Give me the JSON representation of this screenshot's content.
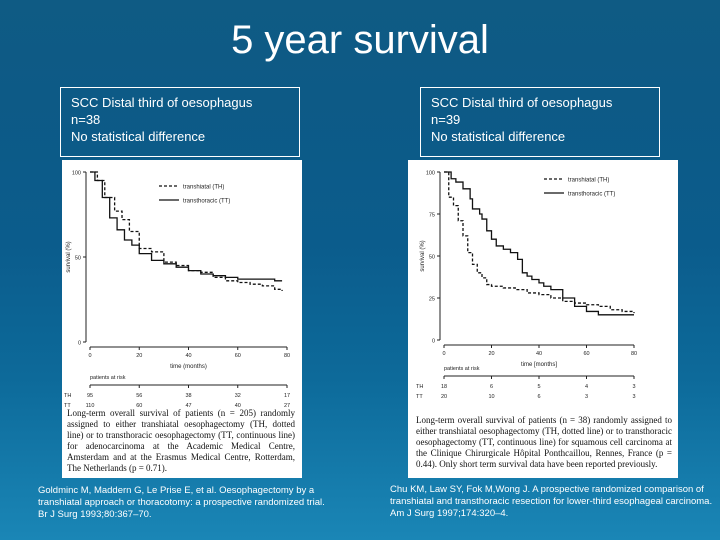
{
  "slide": {
    "title": "5 year survival",
    "left_box": {
      "line1": "SCC Distal third of oesophagus",
      "line2": "n=38",
      "line3": "No statistical difference"
    },
    "right_box": {
      "line1": "SCC Distal third of oesophagus",
      "line2": "n=39",
      "line3": "No statistical difference"
    },
    "left_citation": "Goldminc M, Maddern G, Le Prise E, et al. Oesophagectomy by a transhiatal approach or thoracotomy: a prospective randomized trial. Br J Surg 1993;80:367–70.",
    "right_citation": "Chu KM, Law SY, Fok M,Wong J. A prospective randomized comparison of transhiatal and transthoracic resection for lower-third esophageal carcinoma. Am J Surg 1997;174:320–4."
  },
  "chart_data": [
    {
      "type": "line",
      "xlabel": "time (months)",
      "ylabel": "survival (%)",
      "xticks": [
        0,
        20,
        40,
        60,
        80
      ],
      "yticks": [
        0,
        50,
        100
      ],
      "ylim": [
        0,
        100
      ],
      "xlim": [
        0,
        80
      ],
      "legend_position": "top-right",
      "series": [
        {
          "name": "transhiatal (TH)",
          "style": "dashed",
          "x": [
            0,
            3,
            6,
            10,
            13,
            16,
            20,
            25,
            30,
            35,
            40,
            45,
            50,
            55,
            60,
            65,
            70,
            75,
            78
          ],
          "y": [
            100,
            95,
            85,
            77,
            72,
            65,
            55,
            53,
            47,
            45,
            42,
            41,
            38,
            36,
            35,
            34,
            33,
            31,
            30
          ]
        },
        {
          "name": "transthoracic (TT)",
          "style": "solid",
          "x": [
            0,
            2,
            5,
            8,
            11,
            14,
            17,
            20,
            25,
            30,
            35,
            40,
            45,
            50,
            55,
            60,
            65,
            70,
            75,
            78
          ],
          "y": [
            100,
            95,
            85,
            73,
            66,
            60,
            57,
            52,
            48,
            46,
            44,
            42,
            40,
            39,
            38,
            37,
            37,
            37,
            36,
            36
          ]
        }
      ],
      "risk_table": {
        "header": "patients at risk",
        "rows": [
          {
            "label": "TH",
            "values": [
              "95",
              "56",
              "38",
              "32",
              "17"
            ]
          },
          {
            "label": "TT",
            "values": [
              "110",
              "60",
              "47",
              "40",
              "27"
            ]
          }
        ]
      },
      "caption": "Long-term overall survival of patients (n = 205) randomly assigned to either transhiatal oesophagectomy (TH, dotted line) or to transthoracic oesophagectomy (TT, continuous line) for adenocarcinoma at the Academic Medical Centre, Amsterdam and at the Erasmus Medical Centre, Rotterdam, The Netherlands (p = 0.71)."
    },
    {
      "type": "line",
      "xlabel": "time [months]",
      "ylabel": "survival (%)",
      "xticks": [
        0,
        20,
        40,
        60,
        80
      ],
      "yticks": [
        0,
        25,
        50,
        75,
        100
      ],
      "ylim": [
        0,
        100
      ],
      "xlim": [
        0,
        80
      ],
      "legend_position": "top-right",
      "series": [
        {
          "name": "transhiatal (TH)",
          "style": "dashed",
          "x": [
            0,
            2,
            4,
            6,
            8,
            10,
            12,
            14,
            16,
            18,
            20,
            25,
            30,
            35,
            40,
            45,
            50,
            55,
            60,
            65,
            70,
            75,
            80
          ],
          "y": [
            100,
            85,
            80,
            71,
            62,
            52,
            45,
            40,
            37,
            33,
            32,
            31,
            30,
            28,
            27,
            25,
            23,
            22,
            21,
            20,
            18,
            17,
            16
          ]
        },
        {
          "name": "transthoracic (TT)",
          "style": "solid",
          "x": [
            0,
            3,
            5,
            8,
            11,
            12,
            15,
            16,
            18,
            20,
            22,
            25,
            28,
            31,
            33,
            35,
            37,
            40,
            42,
            45,
            50,
            55,
            60,
            65,
            70,
            75,
            80
          ],
          "y": [
            100,
            96,
            94,
            90,
            84,
            78,
            75,
            72,
            65,
            60,
            56,
            54,
            52,
            48,
            40,
            38,
            36,
            34,
            32,
            30,
            25,
            20,
            17,
            15,
            15,
            15,
            15
          ]
        }
      ],
      "risk_table": {
        "header": "patients at risk",
        "rows": [
          {
            "label": "TH",
            "values": [
              "18",
              "6",
              "5",
              "4",
              "3"
            ]
          },
          {
            "label": "TT",
            "values": [
              "20",
              "10",
              "6",
              "3",
              "3"
            ]
          }
        ]
      },
      "caption": "Long-term overall survival of patients (n = 38) randomly assigned to either transhiatal oesophagectomy (TH, dotted line) or to transthoracic oesophagectomy (TT, continuous line) for squamous cell carcinoma at the Clinique Chirurgicale Hôpital Ponthcaillou, Rennes, France (p = 0.44). Only short term survival data have been reported previously."
    }
  ]
}
